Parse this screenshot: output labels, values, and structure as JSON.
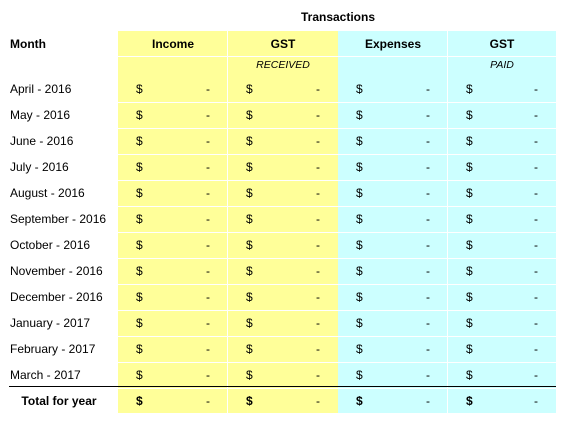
{
  "title": "Transactions",
  "columns": {
    "month": "Month",
    "income": "Income",
    "gst_received": {
      "label": "GST",
      "sub": "RECEIVED"
    },
    "expenses": "Expenses",
    "gst_paid": {
      "label": "GST",
      "sub": "PAID"
    }
  },
  "currency_symbol": "$",
  "empty_value": "-",
  "rows": [
    "April - 2016",
    "May - 2016",
    "June - 2016",
    "July - 2016",
    "August - 2016",
    "September - 2016",
    "October - 2016",
    "November - 2016",
    "December - 2016",
    "January - 2017",
    "February - 2017",
    "March - 2017"
  ],
  "total_label": "Total for year",
  "colors": {
    "income_band": "#ffff99",
    "expenses_band": "#ccffff"
  }
}
